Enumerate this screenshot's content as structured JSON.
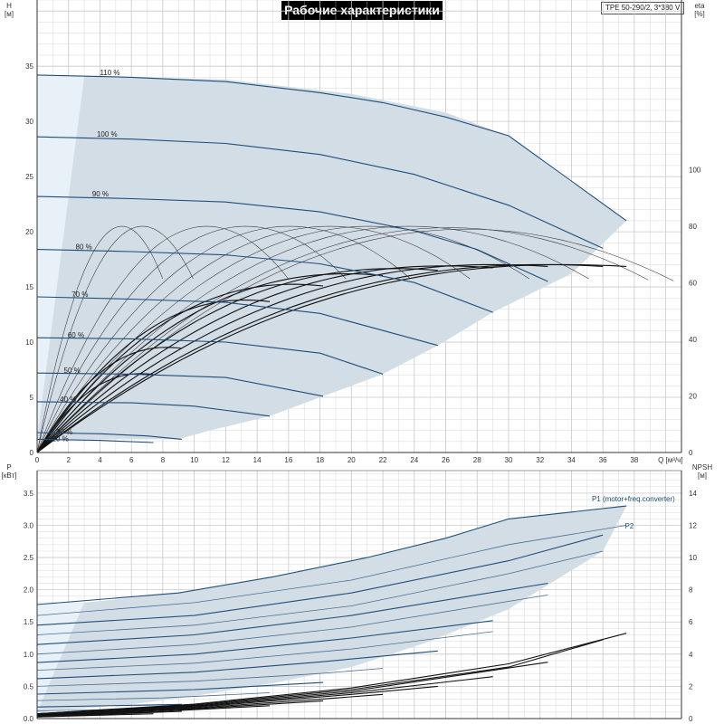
{
  "title": "Рабочие характеристики",
  "model": "TPE 50-290/2, 3*380 V",
  "colors": {
    "band_fill": "#d3dde6",
    "band_light": "#e8f1f8",
    "blue_curve": "#1f4e7a",
    "dark_curve": "#111111",
    "eff_curve": "#333333",
    "grid": "#c8c8c8"
  },
  "chart_data": [
    {
      "type": "line",
      "xlabel": "Q [м³/ч]",
      "ylabel": "H\n[м]",
      "y2label": "eta\n[%]",
      "xlim": [
        0,
        41
      ],
      "ylim": [
        0,
        41
      ],
      "y2lim": [
        0,
        160
      ],
      "x_ticks": [
        0,
        2,
        4,
        6,
        8,
        10,
        12,
        14,
        16,
        18,
        20,
        22,
        24,
        26,
        28,
        30,
        32,
        34,
        36,
        38
      ],
      "y_ticks": [
        0,
        5,
        10,
        15,
        20,
        25,
        30,
        35
      ],
      "y2_ticks": [
        0,
        20,
        40,
        60,
        80,
        100
      ],
      "grid": true,
      "operating_envelope": [
        [
          0,
          34.2
        ],
        [
          3,
          34.1
        ],
        [
          12,
          33.8
        ],
        [
          20,
          32.5
        ],
        [
          26,
          30.8
        ],
        [
          30,
          28.7
        ],
        [
          34,
          24.5
        ],
        [
          37.5,
          21
        ],
        [
          34,
          16.2
        ],
        [
          29,
          12.7
        ],
        [
          25.5,
          9.7
        ],
        [
          22,
          7.1
        ],
        [
          18.2,
          5.1
        ],
        [
          14.8,
          3.3
        ],
        [
          11,
          2
        ],
        [
          9,
          1.2
        ],
        [
          0,
          1.2
        ]
      ],
      "min_speed_zone": [
        [
          0,
          34.2
        ],
        [
          3,
          34.1
        ],
        [
          0,
          1.2
        ]
      ],
      "speed_curves": [
        {
          "label": "110 %",
          "x": [
            0,
            6,
            12,
            18,
            22,
            26,
            30,
            37.5
          ],
          "y": [
            34.2,
            34,
            33.6,
            32.6,
            31.7,
            30.4,
            28.7,
            21
          ]
        },
        {
          "label": "100 %",
          "x": [
            0,
            6,
            12,
            18,
            24,
            30,
            36
          ],
          "y": [
            28.6,
            28.4,
            28,
            27,
            25.2,
            22.4,
            18.5
          ]
        },
        {
          "label": "90 %",
          "x": [
            0,
            6,
            12,
            18,
            24,
            28,
            32.5
          ],
          "y": [
            23.2,
            23,
            22.7,
            21.8,
            20.1,
            18.4,
            15.5
          ]
        },
        {
          "label": "80 %",
          "x": [
            0,
            6,
            12,
            18,
            24,
            29
          ],
          "y": [
            18.4,
            18.2,
            17.9,
            17.1,
            15.4,
            12.7
          ]
        },
        {
          "label": "70 %",
          "x": [
            0,
            6,
            12,
            18,
            25.5
          ],
          "y": [
            14.1,
            13.9,
            13.6,
            12.6,
            9.7
          ]
        },
        {
          "label": "60 %",
          "x": [
            0,
            6,
            12,
            18,
            22
          ],
          "y": [
            10.4,
            10.3,
            10,
            9,
            7.1
          ]
        },
        {
          "label": "50 %",
          "x": [
            0,
            6,
            12,
            18.2
          ],
          "y": [
            7.2,
            7.1,
            6.8,
            5.1
          ]
        },
        {
          "label": "40 %",
          "x": [
            0,
            6,
            10,
            14.8
          ],
          "y": [
            4.6,
            4.5,
            4.2,
            3.3
          ]
        },
        {
          "label": "30 %",
          "x": [
            0,
            4,
            7,
            9.2
          ],
          "y": [
            1.8,
            1.7,
            1.5,
            1.2
          ]
        },
        {
          "label": "20 %",
          "x": [
            0,
            4,
            7.4
          ],
          "y": [
            1.2,
            1.1,
            0.9
          ]
        }
      ],
      "efficiency_curves": [
        {
          "q_max": 7.4,
          "eta_max": 80
        },
        {
          "q_max": 9.2,
          "eta_max": 80
        },
        {
          "q_max": 14.8,
          "eta_max": 80
        },
        {
          "q_max": 18.2,
          "eta_max": 80
        },
        {
          "q_max": 22,
          "eta_max": 80
        },
        {
          "q_max": 25.5,
          "eta_max": 80
        },
        {
          "q_max": 29,
          "eta_max": 80
        },
        {
          "q_max": 32.5,
          "eta_max": 80
        },
        {
          "q_max": 36,
          "eta_max": 79.5
        },
        {
          "q_max": 37.5,
          "eta_max": 79
        }
      ],
      "efficiency_bold_curves": [
        {
          "q_max": 7.4,
          "eta_peak": 30
        },
        {
          "q_max": 9.2,
          "eta_peak": 40
        },
        {
          "q_max": 14.8,
          "eta_peak": 58
        },
        {
          "q_max": 18.2,
          "eta_peak": 64
        },
        {
          "q_max": 22,
          "eta_peak": 68
        },
        {
          "q_max": 25.5,
          "eta_peak": 70
        },
        {
          "q_max": 29,
          "eta_peak": 71
        },
        {
          "q_max": 32.5,
          "eta_peak": 71.5
        },
        {
          "q_max": 36,
          "eta_peak": 71.5
        },
        {
          "q_max": 37.5,
          "eta_peak": 71.5
        }
      ]
    },
    {
      "type": "line",
      "ylabel": "P\n[кВт]",
      "y2label": "NPSH\n[м]",
      "xlim": [
        0,
        41
      ],
      "ylim": [
        0,
        3.85
      ],
      "y2lim": [
        0,
        15.4
      ],
      "y_ticks": [
        0,
        0.5,
        1.0,
        1.5,
        2.0,
        2.5,
        3.0,
        3.5
      ],
      "y_tick_labels": [
        "0.0",
        "0.5",
        "1.0",
        "1.5",
        "2.0",
        "2.5",
        "3.0",
        "3.5"
      ],
      "y2_ticks": [
        0,
        2,
        4,
        6,
        8,
        10,
        12,
        14
      ],
      "grid": true,
      "series_labels": [
        "P1 (motor+freq.converter)",
        "P2"
      ],
      "power_envelope": [
        [
          0,
          1.77
        ],
        [
          3,
          1.8
        ],
        [
          9,
          1.95
        ],
        [
          15,
          2.2
        ],
        [
          21,
          2.5
        ],
        [
          26,
          2.8
        ],
        [
          30,
          3.1
        ],
        [
          37.5,
          3.3
        ],
        [
          36,
          2.6
        ],
        [
          30,
          1.7
        ],
        [
          25,
          1.2
        ],
        [
          20,
          0.8
        ],
        [
          15,
          0.55
        ],
        [
          10,
          0.35
        ],
        [
          6,
          0.22
        ],
        [
          0,
          0.1
        ]
      ],
      "p1_curves": [
        {
          "x": [
            0,
            9,
            15,
            21,
            26,
            30,
            37.5
          ],
          "y": [
            1.77,
            1.95,
            2.2,
            2.5,
            2.8,
            3.1,
            3.3
          ]
        },
        {
          "x": [
            0,
            10,
            20,
            30,
            37.5
          ],
          "y": [
            1.6,
            1.8,
            2.15,
            2.7,
            3.0
          ]
        },
        {
          "x": [
            0,
            10,
            20,
            30,
            36
          ],
          "y": [
            1.45,
            1.6,
            1.95,
            2.45,
            2.85
          ]
        },
        {
          "x": [
            0,
            10,
            20,
            30,
            36
          ],
          "y": [
            1.3,
            1.45,
            1.75,
            2.25,
            2.6
          ]
        },
        {
          "x": [
            0,
            10,
            20,
            32.5
          ],
          "y": [
            1.15,
            1.3,
            1.6,
            2.1
          ]
        },
        {
          "x": [
            0,
            10,
            20,
            32.5
          ],
          "y": [
            1.0,
            1.15,
            1.42,
            1.92
          ]
        },
        {
          "x": [
            0,
            10,
            20,
            29
          ],
          "y": [
            0.87,
            1.0,
            1.25,
            1.52
          ]
        },
        {
          "x": [
            0,
            10,
            20,
            29
          ],
          "y": [
            0.75,
            0.86,
            1.08,
            1.35
          ]
        },
        {
          "x": [
            0,
            10,
            18,
            25.5
          ],
          "y": [
            0.62,
            0.72,
            0.88,
            1.05
          ]
        },
        {
          "x": [
            0,
            10,
            18,
            22
          ],
          "y": [
            0.5,
            0.58,
            0.7,
            0.78
          ]
        },
        {
          "x": [
            0,
            10,
            18.2
          ],
          "y": [
            0.38,
            0.45,
            0.56
          ]
        },
        {
          "x": [
            0,
            8,
            14.8
          ],
          "y": [
            0.28,
            0.32,
            0.4
          ]
        },
        {
          "x": [
            0,
            9.2
          ],
          "y": [
            0.18,
            0.22
          ]
        },
        {
          "x": [
            0,
            7.4
          ],
          "y": [
            0.12,
            0.15
          ]
        }
      ],
      "npsh_curves": [
        {
          "x": [
            0,
            10,
            20,
            30,
            37.5
          ],
          "y": [
            0.3,
            0.9,
            1.9,
            3.4,
            5.3
          ]
        },
        {
          "x": [
            0,
            10,
            20,
            30,
            36
          ],
          "y": [
            0.3,
            0.85,
            1.8,
            3.2,
            4.9
          ]
        },
        {
          "x": [
            0,
            10,
            20,
            32.5
          ],
          "y": [
            0.3,
            0.8,
            1.7,
            3.5
          ]
        },
        {
          "x": [
            0,
            10,
            20,
            29
          ],
          "y": [
            0.25,
            0.75,
            1.6,
            2.6
          ]
        },
        {
          "x": [
            0,
            10,
            20,
            25.5
          ],
          "y": [
            0.2,
            0.7,
            1.5,
            2.0
          ]
        },
        {
          "x": [
            0,
            10,
            18,
            22
          ],
          "y": [
            0.2,
            0.65,
            1.2,
            1.5
          ]
        },
        {
          "x": [
            0,
            10,
            18.2
          ],
          "y": [
            0.15,
            0.6,
            1.1
          ]
        },
        {
          "x": [
            0,
            8,
            14.8
          ],
          "y": [
            0.15,
            0.45,
            0.8
          ]
        },
        {
          "x": [
            0,
            9.2
          ],
          "y": [
            0.1,
            0.45
          ]
        },
        {
          "x": [
            0,
            7.4
          ],
          "y": [
            0.1,
            0.3
          ]
        }
      ]
    }
  ]
}
